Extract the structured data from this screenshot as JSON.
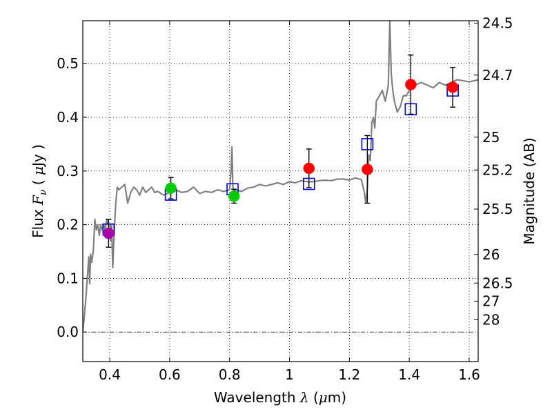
{
  "chart_data": {
    "type": "scatter",
    "xlabel": "Wavelength  λ (μm)",
    "xlabel_parts": [
      "Wavelength  ",
      "λ",
      " (",
      "μ",
      "m)"
    ],
    "ylabel": "Flux  Fν ( μJy )",
    "ylabel_parts": [
      "Flux  ",
      "F",
      "ν",
      "  ( ",
      "μ",
      "Jy )"
    ],
    "y2label": "Magnitude (AB)",
    "xlim": [
      0.31,
      1.63
    ],
    "ylim": [
      -0.055,
      0.58
    ],
    "x_ticks": [
      0.4,
      0.6,
      0.8,
      1.0,
      1.2,
      1.4,
      1.6
    ],
    "x_tick_labels": [
      "0.4",
      "0.6",
      "0.8",
      "1",
      "1.2",
      "1.4",
      "1.6"
    ],
    "y_ticks": [
      0.0,
      0.1,
      0.2,
      0.3,
      0.4,
      0.5
    ],
    "y_tick_labels": [
      "0.0",
      "0.1",
      "0.2",
      "0.3",
      "0.4",
      "0.5"
    ],
    "mag_ticks": [
      24.5,
      24.7,
      25,
      25.2,
      25.5,
      26,
      26.5,
      27,
      28
    ],
    "mag_tick_labels": [
      "24.5",
      "24.7",
      "25",
      "25.2",
      "25.5",
      "26",
      "26.5",
      "27",
      "28"
    ],
    "grid": true,
    "zero_line": true,
    "series": [
      {
        "name": "model_spectrum",
        "kind": "line",
        "color": "#808080",
        "x": [
          0.31,
          0.315,
          0.32,
          0.325,
          0.33,
          0.333,
          0.336,
          0.34,
          0.345,
          0.35,
          0.355,
          0.36,
          0.365,
          0.37,
          0.375,
          0.38,
          0.385,
          0.39,
          0.395,
          0.4,
          0.403,
          0.406,
          0.41,
          0.415,
          0.42,
          0.425,
          0.43,
          0.44,
          0.45,
          0.46,
          0.47,
          0.48,
          0.49,
          0.5,
          0.51,
          0.52,
          0.53,
          0.54,
          0.55,
          0.56,
          0.58,
          0.6,
          0.62,
          0.64,
          0.66,
          0.68,
          0.7,
          0.72,
          0.74,
          0.76,
          0.78,
          0.8,
          0.805,
          0.808,
          0.811,
          0.815,
          0.82,
          0.84,
          0.86,
          0.88,
          0.9,
          0.92,
          0.94,
          0.96,
          0.98,
          1.0,
          1.02,
          1.04,
          1.06,
          1.08,
          1.1,
          1.12,
          1.14,
          1.16,
          1.18,
          1.2,
          1.22,
          1.24,
          1.25,
          1.255,
          1.26,
          1.265,
          1.27,
          1.275,
          1.28,
          1.285,
          1.29,
          1.3,
          1.31,
          1.32,
          1.33,
          1.335,
          1.34,
          1.345,
          1.35,
          1.36,
          1.37,
          1.38,
          1.39,
          1.4,
          1.42,
          1.44,
          1.46,
          1.48,
          1.5,
          1.52,
          1.54,
          1.56,
          1.58,
          1.6,
          1.63
        ],
        "values": [
          0.0,
          0.03,
          0.06,
          0.1,
          0.14,
          0.09,
          0.145,
          0.13,
          0.15,
          0.21,
          0.19,
          0.2,
          0.18,
          0.2,
          0.19,
          0.2,
          0.19,
          0.21,
          0.2,
          0.2,
          0.17,
          0.2,
          0.12,
          0.19,
          0.24,
          0.27,
          0.265,
          0.27,
          0.275,
          0.24,
          0.26,
          0.27,
          0.265,
          0.255,
          0.27,
          0.26,
          0.265,
          0.27,
          0.26,
          0.262,
          0.255,
          0.26,
          0.265,
          0.26,
          0.262,
          0.27,
          0.258,
          0.262,
          0.26,
          0.265,
          0.262,
          0.265,
          0.3,
          0.345,
          0.27,
          0.26,
          0.265,
          0.262,
          0.268,
          0.27,
          0.275,
          0.272,
          0.275,
          0.278,
          0.275,
          0.28,
          0.278,
          0.282,
          0.28,
          0.28,
          0.282,
          0.283,
          0.282,
          0.285,
          0.285,
          0.283,
          0.287,
          0.284,
          0.26,
          0.24,
          0.27,
          0.33,
          0.32,
          0.39,
          0.4,
          0.38,
          0.43,
          0.44,
          0.45,
          0.43,
          0.46,
          0.58,
          0.48,
          0.45,
          0.43,
          0.41,
          0.42,
          0.44,
          0.44,
          0.45,
          0.46,
          0.465,
          0.46,
          0.455,
          0.465,
          0.46,
          0.465,
          0.47,
          0.468,
          0.466,
          0.47
        ]
      },
      {
        "name": "model_photometry",
        "kind": "open_square",
        "color": "#0000cc",
        "x": [
          0.396,
          0.604,
          0.81,
          1.065,
          1.26,
          1.405,
          1.545
        ],
        "values": [
          0.191,
          0.256,
          0.266,
          0.276,
          0.35,
          0.415,
          0.45
        ]
      },
      {
        "name": "observed_red",
        "kind": "filled_circle",
        "color": "#ff0000",
        "x": [
          1.065,
          1.26,
          1.405,
          1.545
        ],
        "values": [
          0.305,
          0.303,
          0.461,
          0.456
        ],
        "errors": [
          0.036,
          0.063,
          0.055,
          0.037
        ]
      },
      {
        "name": "observed_green",
        "kind": "filled_circle",
        "color": "#00cc00",
        "x": [
          0.604,
          0.815
        ],
        "values": [
          0.268,
          0.253
        ],
        "errors": [
          0.02,
          0.013
        ]
      },
      {
        "name": "observed_magenta",
        "kind": "filled_circle",
        "color": "#aa00aa",
        "x": [
          0.396
        ],
        "values": [
          0.184
        ],
        "errors": [
          0.026
        ]
      }
    ]
  }
}
